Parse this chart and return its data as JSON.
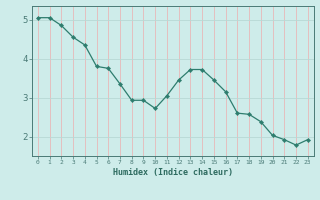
{
  "x": [
    0,
    1,
    2,
    3,
    4,
    5,
    6,
    7,
    8,
    9,
    10,
    11,
    12,
    13,
    14,
    15,
    16,
    17,
    18,
    19,
    20,
    21,
    22,
    23
  ],
  "y": [
    5.05,
    5.05,
    4.85,
    4.55,
    4.35,
    3.8,
    3.75,
    3.35,
    2.93,
    2.93,
    2.72,
    3.05,
    3.45,
    3.72,
    3.72,
    3.45,
    3.15,
    2.6,
    2.57,
    2.38,
    2.03,
    1.92,
    1.78,
    1.92
  ],
  "line_color": "#2e7d6e",
  "marker": "D",
  "marker_size": 2.2,
  "bg_color": "#ceecea",
  "grid_color": "#b8d8d5",
  "axis_color": "#4a7a76",
  "xlabel": "Humidex (Indice chaleur)",
  "ylim": [
    1.5,
    5.35
  ],
  "xlim": [
    -0.5,
    23.5
  ],
  "yticks": [
    2,
    3,
    4,
    5
  ],
  "xticks": [
    0,
    1,
    2,
    3,
    4,
    5,
    6,
    7,
    8,
    9,
    10,
    11,
    12,
    13,
    14,
    15,
    16,
    17,
    18,
    19,
    20,
    21,
    22,
    23
  ],
  "font_color": "#2e6b60"
}
